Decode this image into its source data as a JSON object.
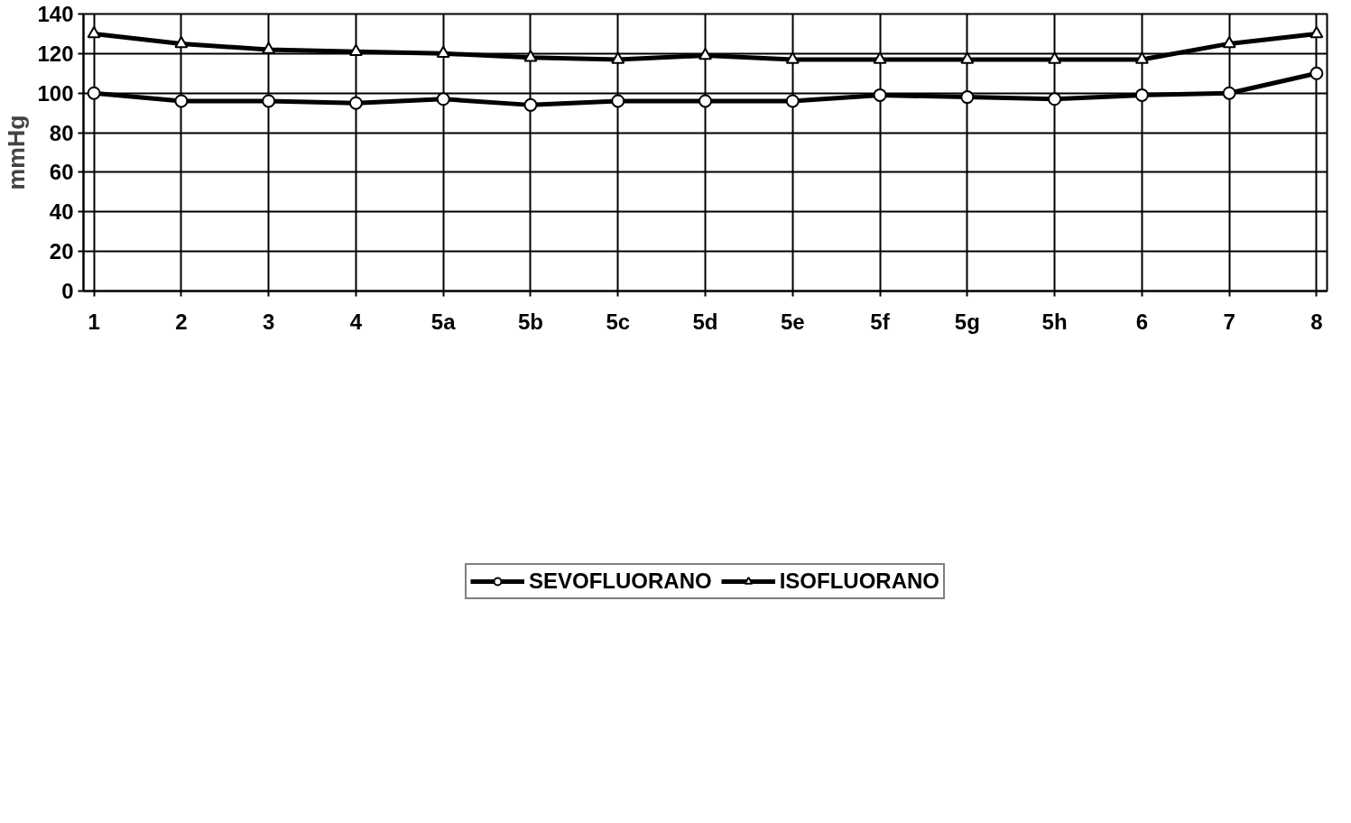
{
  "chart_data": {
    "type": "line",
    "ylabel": "mmHg",
    "categories": [
      "1",
      "2",
      "3",
      "4",
      "5a",
      "5b",
      "5c",
      "5d",
      "5e",
      "5f",
      "5g",
      "5h",
      "6",
      "7",
      "8"
    ],
    "series": [
      {
        "name": "SEVOFLUORANO",
        "color": "#000000",
        "marker": "circle",
        "values": [
          100,
          96,
          96,
          95,
          97,
          94,
          96,
          96,
          96,
          99,
          98,
          97,
          99,
          100,
          110
        ]
      },
      {
        "name": "ISOFLUORANO",
        "color": "#000000",
        "marker": "triangle",
        "values": [
          130,
          125,
          122,
          121,
          120,
          118,
          117,
          119,
          117,
          117,
          117,
          117,
          117,
          125,
          130
        ]
      }
    ],
    "ylim": [
      0,
      140
    ],
    "yticks": [
      0,
      20,
      40,
      60,
      80,
      100,
      120,
      140
    ],
    "grid": true,
    "legend": "bottom",
    "line_style": "solid"
  }
}
